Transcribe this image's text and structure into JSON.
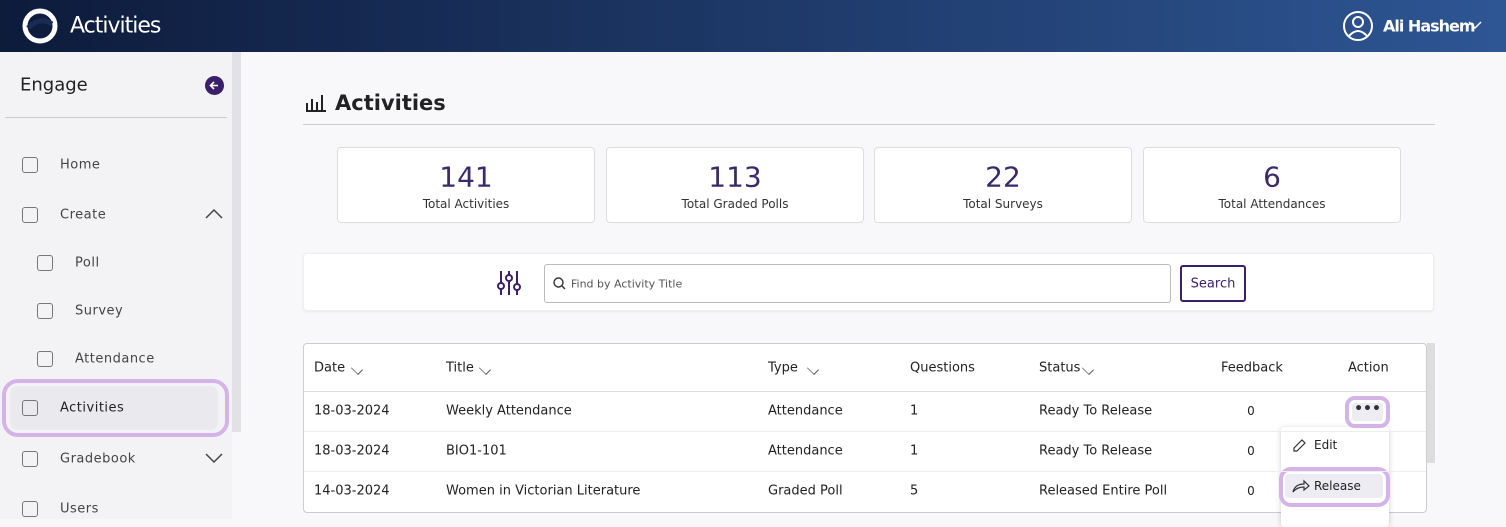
{
  "header": {
    "app_title": "Activities",
    "user_name": "Ali Hashem"
  },
  "sidebar": {
    "title": "Engage",
    "items": [
      "Home",
      "Create",
      "Poll",
      "Survey",
      "Attendance",
      "Activities",
      "Gradebook",
      "Users"
    ]
  },
  "page": {
    "title": "Activities"
  },
  "stats": [
    {
      "value": 141,
      "label": "Total Activities"
    },
    {
      "value": 113,
      "label": "Total Graded Polls"
    },
    {
      "value": 22,
      "label": "Total Surveys"
    },
    {
      "value": 6,
      "label": "Total Attendances"
    }
  ],
  "search": {
    "placeholder": "Find by Activity Title",
    "button": "Search"
  },
  "table": {
    "columns": [
      "Date",
      "Title",
      "Type",
      "Questions",
      "Status",
      "Feedback",
      "Action"
    ],
    "rows": [
      [
        "18-03-2024",
        "Weekly Attendance",
        "Attendance",
        1,
        "Ready To Release",
        0
      ],
      [
        "18-03-2024",
        "BIO1-101",
        "Attendance",
        1,
        "Ready To Release",
        0
      ],
      [
        "14-03-2024",
        "Women in Victorian Literature",
        "Graded Poll",
        5,
        "Released Entire Poll",
        0
      ]
    ]
  },
  "menu": [
    "Edit",
    "Release"
  ]
}
